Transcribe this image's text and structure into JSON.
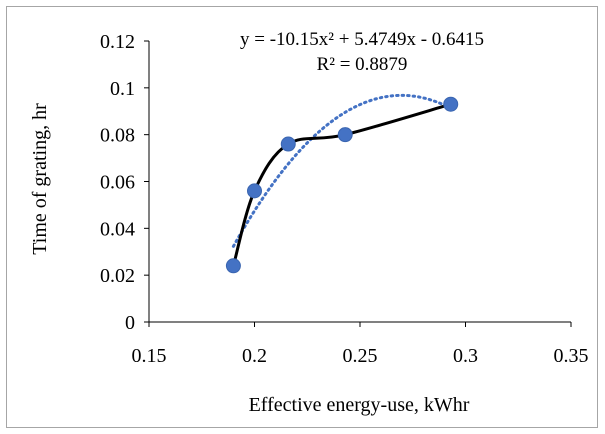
{
  "chart_data": {
    "type": "scatter",
    "xlabel": "Effective energy-use, kWhr",
    "ylabel": "Time of grating, hr",
    "xlim": [
      0.15,
      0.35
    ],
    "ylim": [
      0,
      0.12
    ],
    "x_ticks": [
      "0.15",
      "0.2",
      "0.25",
      "0.3",
      "0.35"
    ],
    "y_ticks": [
      "0",
      "0.02",
      "0.04",
      "0.06",
      "0.08",
      "0.1",
      "0.12"
    ],
    "grid": false,
    "legend": "none",
    "series": [
      {
        "x": [
          0.19,
          0.2,
          0.216,
          0.243,
          0.293
        ],
        "y": [
          0.024,
          0.056,
          0.076,
          0.08,
          0.093
        ],
        "marker_color": "#4472c4",
        "line": "smoothed",
        "line_color": "#000000"
      }
    ],
    "trendline": {
      "type": "polynomial",
      "order": 2,
      "coefficients": [
        -10.15,
        5.4749,
        -0.6415
      ],
      "equation": "y = -10.15x² + 5.4749x - 0.6415",
      "r_squared": "R² = 0.8879",
      "style": "dotted",
      "color": "#4472c4"
    }
  }
}
